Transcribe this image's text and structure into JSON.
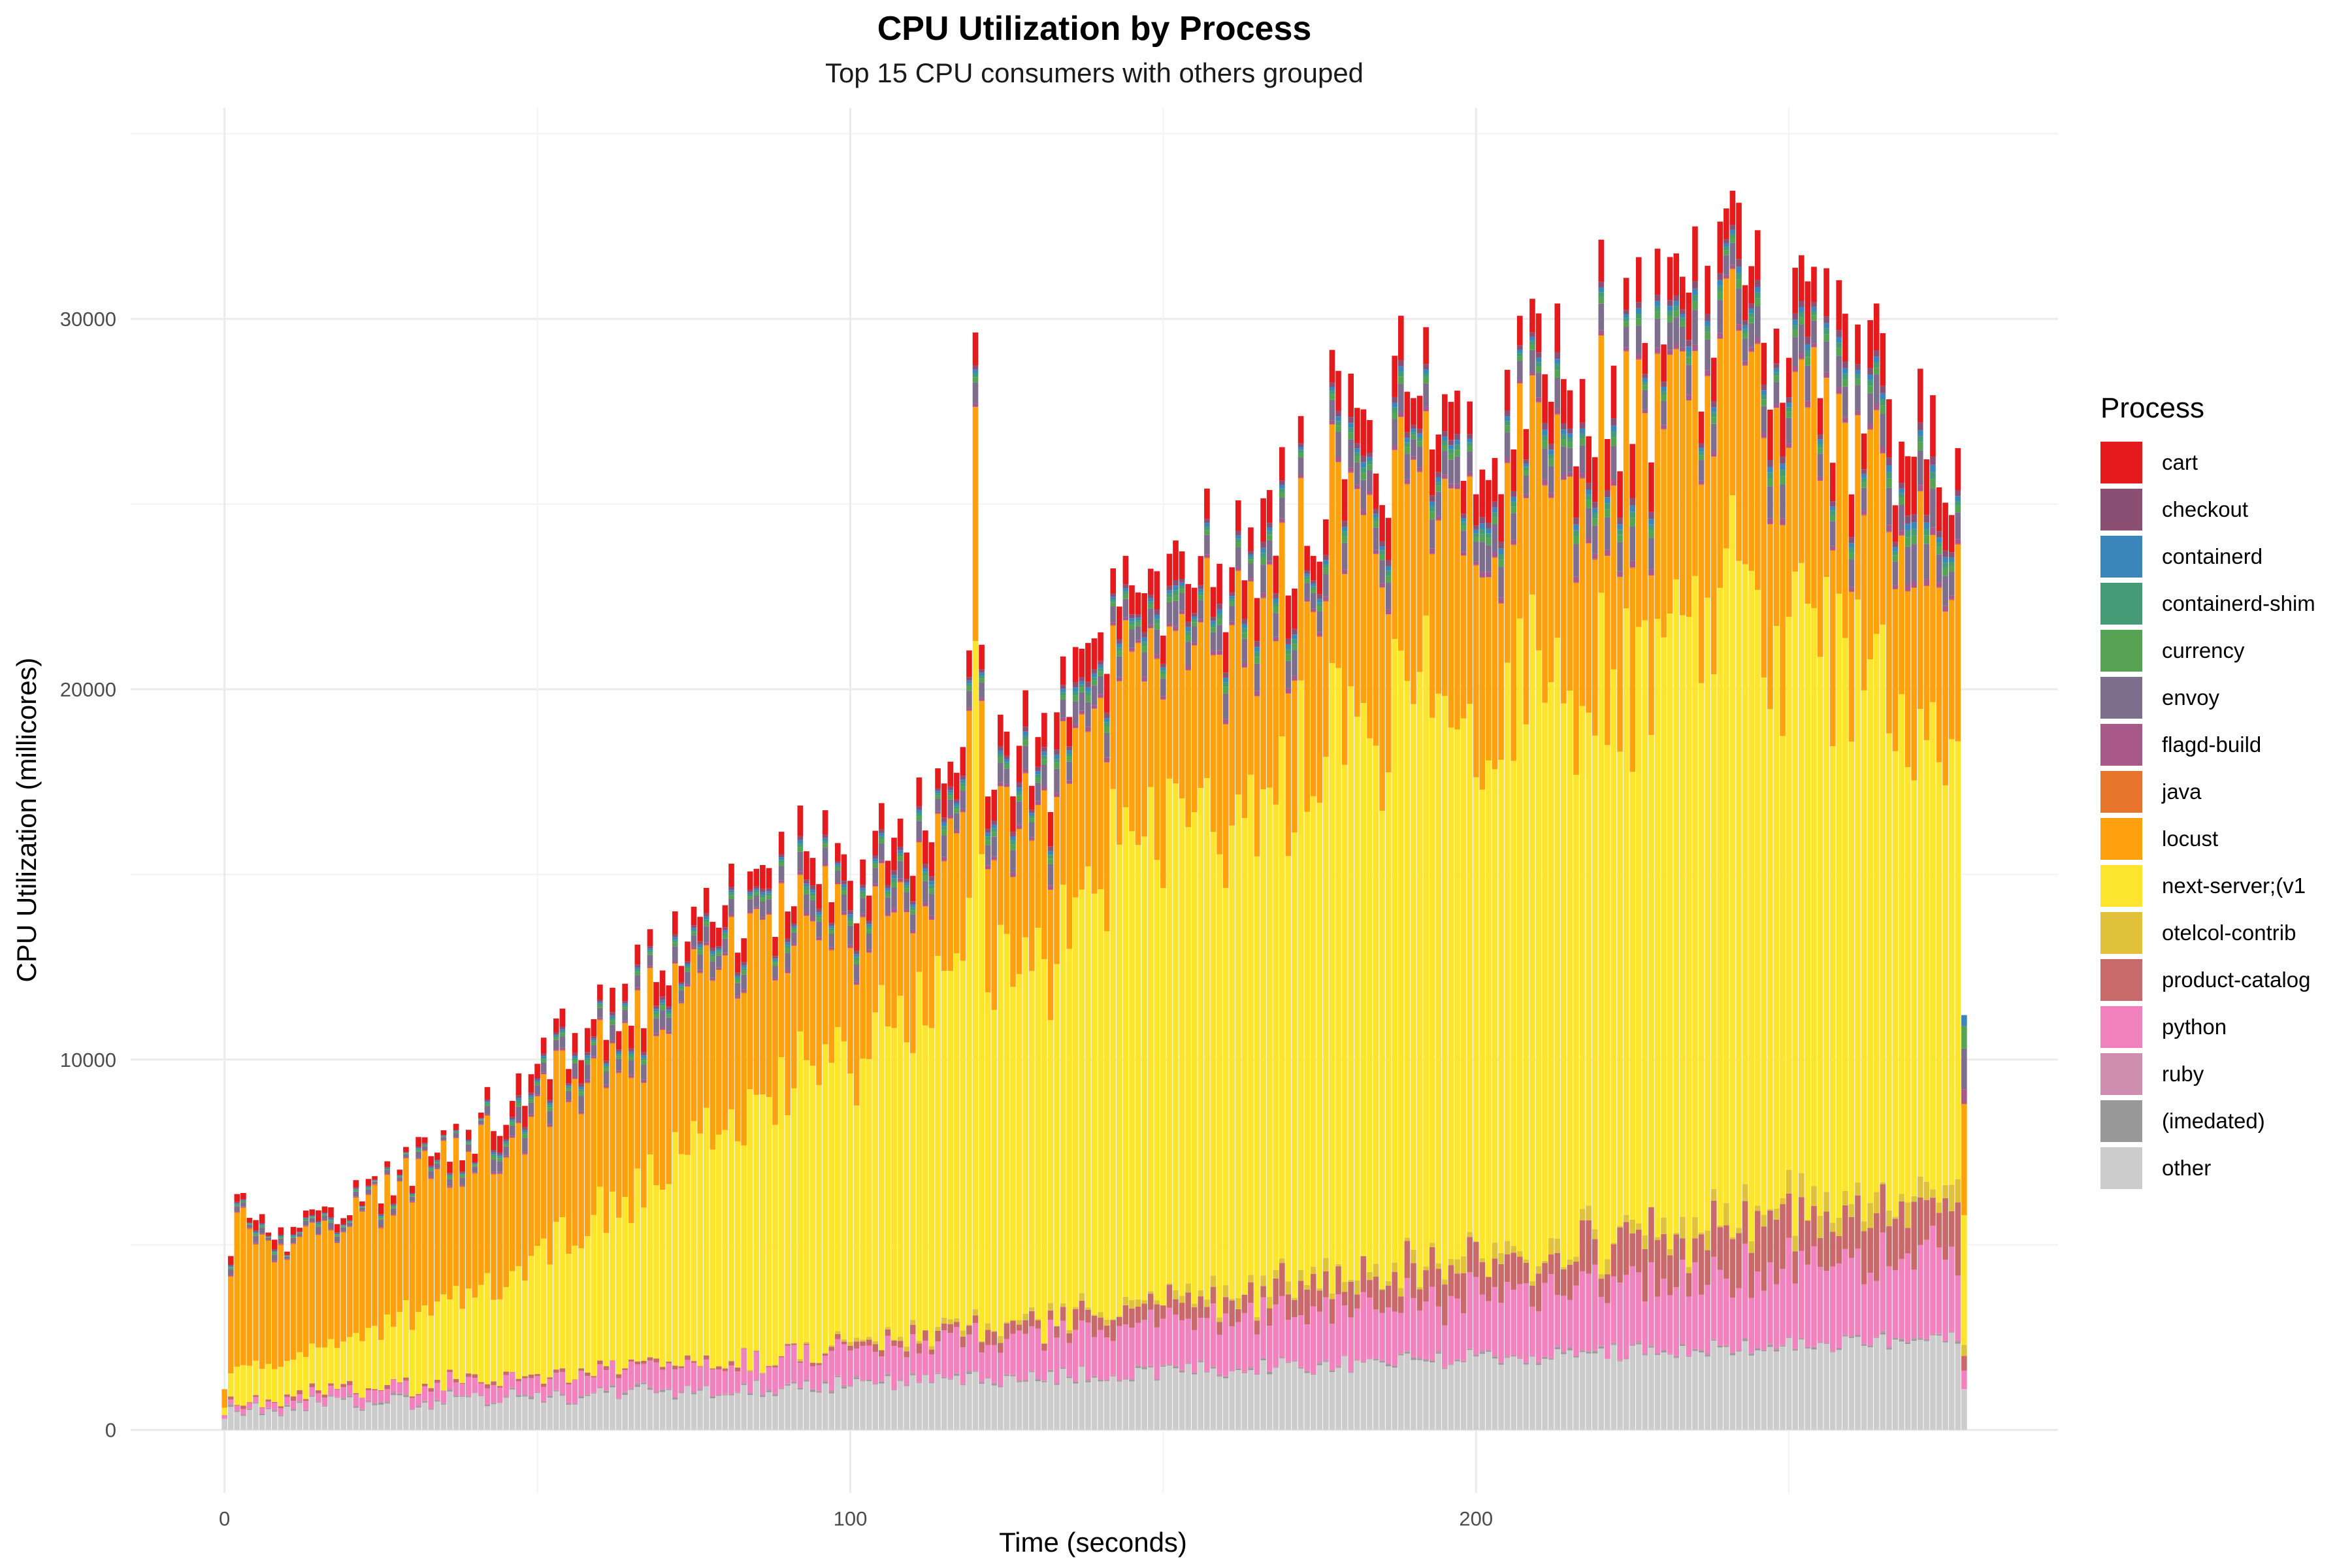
{
  "chart_data": {
    "type": "bar",
    "stacked": true,
    "title": "CPU Utilization by Process",
    "subtitle": "Top 15 CPU consumers with others grouped",
    "xlabel": "Time (seconds)",
    "ylabel": "CPU Utilization (millicores)",
    "xlim": [
      -15,
      293
    ],
    "ylim": [
      -1700,
      35700
    ],
    "x_ticks": [
      0,
      100,
      200
    ],
    "y_ticks": [
      0,
      10000,
      20000,
      30000
    ],
    "grid": true,
    "legend_title": "Process",
    "legend_position": "right",
    "series": [
      {
        "name": "cart",
        "color": "#E41A1C"
      },
      {
        "name": "checkout",
        "color": "#8A4F73"
      },
      {
        "name": "containerd",
        "color": "#3A85BA"
      },
      {
        "name": "containerd-shim",
        "color": "#449B75"
      },
      {
        "name": "currency",
        "color": "#56A354"
      },
      {
        "name": "envoy",
        "color": "#7E6E8E"
      },
      {
        "name": "flagd-build",
        "color": "#A95989"
      },
      {
        "name": "java",
        "color": "#E6742B"
      },
      {
        "name": "locust",
        "color": "#FFA10F"
      },
      {
        "name": "next-server;(v1",
        "color": "#FEE52D"
      },
      {
        "name": "otelcol-contrib",
        "color": "#E2C13A"
      },
      {
        "name": "product-catalog",
        "color": "#C9696A"
      },
      {
        "name": "python",
        "color": "#F282BD"
      },
      {
        "name": "ruby",
        "color": "#CF8EB0"
      },
      {
        "name": "(imedated)",
        "color": "#999999"
      },
      {
        "name": "other",
        "color": "#CCCCCC"
      }
    ],
    "x_range": [
      0,
      278
    ],
    "totals_profile": {
      "x": [
        0,
        1,
        2,
        10,
        20,
        30,
        40,
        50,
        60,
        70,
        80,
        90,
        95,
        100,
        110,
        120,
        130,
        140,
        150,
        155,
        160,
        170,
        180,
        190,
        200,
        210,
        220,
        230,
        240,
        243,
        250,
        260,
        270,
        277,
        278
      ],
      "y": [
        1100,
        5200,
        6500,
        5500,
        6800,
        7700,
        9000,
        10500,
        12200,
        13500,
        15200,
        16000,
        17800,
        16200,
        18000,
        21000,
        19500,
        22500,
        24000,
        26500,
        25500,
        27000,
        29500,
        30000,
        30500,
        31000,
        31500,
        31500,
        32500,
        34000,
        31500,
        30500,
        29000,
        28000,
        12000
      ]
    }
  }
}
